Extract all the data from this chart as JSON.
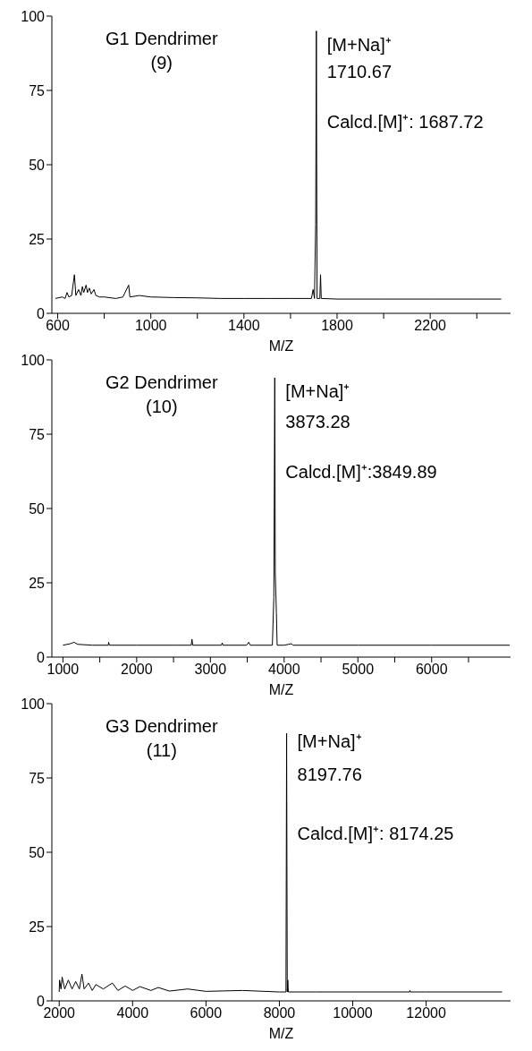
{
  "chart_data": [
    {
      "type": "line",
      "title": "G1 Dendrimer",
      "subtitle": "(9)",
      "xlabel": "M/Z",
      "xlim": [
        575,
        2545
      ],
      "ylim": [
        0,
        100
      ],
      "yticks": [
        0,
        25,
        50,
        75,
        100
      ],
      "xticks": [
        600,
        {
          "value": 800,
          "label": null
        },
        1000,
        {
          "value": 1200,
          "label": null
        },
        1400,
        {
          "value": 1600,
          "label": null
        },
        1800,
        {
          "value": 2000,
          "label": null
        },
        2200,
        {
          "value": 2400,
          "label": null
        }
      ],
      "marker": "none",
      "line_style": "solid",
      "annotations": [
        {
          "text": "[M+Na]⁺",
          "x": 1710.67,
          "y": 91
        },
        {
          "text": "1710.67",
          "x": 1710.67,
          "y": 81
        },
        {
          "text": "Calcd.[M]⁺: 1687.72",
          "x": 1710.67,
          "y": 65
        }
      ],
      "series": [
        {
          "color": "#000000",
          "x": [
            590,
            620,
            632,
            640,
            648,
            660,
            672,
            678,
            690,
            700,
            706,
            712,
            722,
            728,
            736,
            744,
            756,
            764,
            780,
            800,
            850,
            880,
            905,
            910,
            950,
            1000,
            1100,
            1200,
            1300,
            1400,
            1500,
            1600,
            1690,
            1697,
            1703,
            1708,
            1711,
            1714,
            1726,
            1729,
            1732,
            1800,
            2000,
            2200,
            2400,
            2505
          ],
          "values": [
            5,
            5.5,
            5,
            7,
            5.5,
            6,
            13,
            6,
            8,
            6,
            9,
            7,
            9.5,
            7,
            8.5,
            6.5,
            8,
            6,
            5.5,
            5.5,
            5,
            5.5,
            9.5,
            5.5,
            6,
            5.5,
            5.3,
            5.2,
            5,
            5,
            5,
            5,
            5,
            8,
            5,
            30,
            95,
            5,
            5,
            13,
            5,
            4.8,
            4.8,
            4.8,
            4.8,
            4.8
          ]
        }
      ]
    },
    {
      "type": "line",
      "title": "G2 Dendrimer",
      "subtitle": "(10)",
      "xlabel": "M/Z",
      "xlim": [
        850,
        7070
      ],
      "ylim": [
        0,
        100
      ],
      "yticks": [
        0,
        25,
        50,
        75,
        100
      ],
      "xticks": [
        1000,
        {
          "value": 1500,
          "label": null
        },
        2000,
        {
          "value": 2500,
          "label": null
        },
        3000,
        {
          "value": 3500,
          "label": null
        },
        4000,
        {
          "value": 4500,
          "label": null
        },
        5000,
        {
          "value": 5500,
          "label": null
        },
        6000,
        {
          "value": 6500,
          "label": null
        }
      ],
      "marker": "none",
      "line_style": "solid",
      "annotations": [
        {
          "text": "[M+Na]⁺",
          "x": 3873.28,
          "y": 90
        },
        {
          "text": "3873.28",
          "x": 3873.28,
          "y": 79
        },
        {
          "text": "Calcd.[M]⁺:3849.89",
          "x": 3873.28,
          "y": 63
        }
      ],
      "series": [
        {
          "color": "#000000",
          "x": [
            1000,
            1100,
            1150,
            1200,
            1400,
            1615,
            1620,
            1630,
            2000,
            2500,
            2740,
            2750,
            2760,
            3150,
            3160,
            3170,
            3490,
            3520,
            3540,
            3840,
            3860,
            3873,
            3880,
            3895,
            3905,
            4000,
            4100,
            4120,
            5000,
            6000,
            7060
          ],
          "values": [
            4,
            4.5,
            5,
            4.3,
            4,
            4,
            5,
            4,
            4,
            4,
            4,
            6,
            4,
            4,
            4.8,
            4,
            4,
            5,
            4,
            4,
            20,
            94,
            28,
            15,
            4,
            4,
            4.5,
            4,
            4,
            4,
            4
          ]
        }
      ]
    },
    {
      "type": "line",
      "title": "G3 Dendrimer",
      "subtitle": "(11)",
      "xlabel": "M/Z",
      "xlim": [
        1800,
        14300
      ],
      "ylim": [
        0,
        100
      ],
      "yticks": [
        0,
        25,
        50,
        75,
        100
      ],
      "xticks": [
        2000,
        4000,
        6000,
        8000,
        10000,
        12000
      ],
      "marker": "none",
      "line_style": "solid",
      "annotations": [
        {
          "text": "[M+Na]⁺",
          "x": 8197.76,
          "y": 88
        },
        {
          "text": "8197.76",
          "x": 8197.76,
          "y": 76
        },
        {
          "text": "Calcd.[M]⁺: 8174.25",
          "x": 8197.76,
          "y": 57
        }
      ],
      "series": [
        {
          "color": "#000000",
          "x": [
            2000,
            2010,
            2050,
            2080,
            2150,
            2250,
            2350,
            2450,
            2550,
            2620,
            2680,
            2800,
            2900,
            3000,
            3200,
            3450,
            3600,
            3800,
            4000,
            4200,
            4500,
            4700,
            5000,
            5500,
            6000,
            7000,
            8000,
            8180,
            8198,
            8215,
            8230,
            8245,
            9000,
            11550,
            11560,
            11570,
            12000,
            14070
          ],
          "values": [
            3,
            7,
            4,
            8,
            4,
            7,
            4,
            6.5,
            4,
            9,
            4,
            6,
            3.5,
            5.5,
            4,
            6,
            3.5,
            5,
            3.5,
            4.8,
            3.5,
            4.5,
            3.3,
            4,
            3.2,
            3.5,
            3,
            3,
            90,
            3,
            7,
            3,
            3,
            3,
            3.5,
            3,
            3,
            3
          ]
        }
      ]
    }
  ]
}
